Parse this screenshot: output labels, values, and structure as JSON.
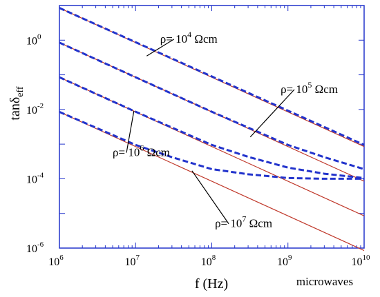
{
  "chart_data": {
    "type": "line",
    "title": "",
    "xlabel": "f (Hz)",
    "xlabel_extra": "microwaves",
    "ylabel": {
      "base": "tanδ",
      "subscript": "eff"
    },
    "x_scale": "log",
    "y_scale": "log",
    "xlim": [
      1000000,
      10000000000
    ],
    "ylim": [
      1e-06,
      10
    ],
    "x_ticks": [
      {
        "base": "10",
        "exp": "6"
      },
      {
        "base": "10",
        "exp": "7"
      },
      {
        "base": "10",
        "exp": "8"
      },
      {
        "base": "10",
        "exp": "9"
      },
      {
        "base": "10",
        "exp": "10"
      }
    ],
    "y_ticks": [
      {
        "base": "10",
        "exp": "-6",
        "value": 1e-06
      },
      {
        "base": "10",
        "exp": "-4",
        "value": 0.0001
      },
      {
        "base": "10",
        "exp": "-2",
        "value": 0.01
      },
      {
        "base": "10",
        "exp": "0",
        "value": 1
      }
    ],
    "grid": false,
    "legend": "none",
    "series": [
      {
        "style": "solid",
        "color": "#c0392b",
        "x": [
          1000000,
          10000000000
        ],
        "y": [
          8.5,
          0.00085
        ]
      },
      {
        "style": "solid",
        "color": "#c0392b",
        "x": [
          1000000,
          10000000000
        ],
        "y": [
          0.85,
          8.5e-05
        ]
      },
      {
        "style": "solid",
        "color": "#c0392b",
        "x": [
          1000000,
          10000000000
        ],
        "y": [
          0.085,
          8.5e-06
        ]
      },
      {
        "style": "solid",
        "color": "#c0392b",
        "x": [
          1000000,
          10000000000
        ],
        "y": [
          0.0085,
          8.5e-07
        ]
      },
      {
        "style": "dashed",
        "color": "#2233cc",
        "x": [
          1000000,
          10000000000
        ],
        "y": [
          8.5,
          0.00095
        ]
      },
      {
        "style": "dashed",
        "color": "#2233cc",
        "x": [
          1000000,
          10000000,
          100000000,
          1000000000,
          3000000000,
          10000000000
        ],
        "y": [
          0.85,
          0.085,
          0.0086,
          0.00095,
          0.00042,
          0.00019
        ]
      },
      {
        "style": "dashed",
        "color": "#2233cc",
        "x": [
          1000000,
          10000000,
          100000000,
          300000000,
          1000000000,
          3000000000,
          10000000000
        ],
        "y": [
          0.085,
          0.0086,
          0.00095,
          0.00043,
          0.00021,
          0.00014,
          0.000105
        ]
      },
      {
        "style": "dashed",
        "color": "#2233cc",
        "x": [
          1000000,
          3000000,
          10000000,
          30000000,
          100000000,
          300000000,
          1000000000,
          3000000000,
          10000000000
        ],
        "y": [
          0.0085,
          0.003,
          0.00095,
          0.00042,
          0.00019,
          0.000135,
          0.000105,
          0.0001,
          0.0001
        ]
      }
    ],
    "annotations": [
      {
        "label": "ρ= 10",
        "exp": "4",
        "unit": " Ωcm",
        "anchor": [
          21000000,
          0.85
        ],
        "pointer": [
          14000000,
          0.35
        ]
      },
      {
        "label": "ρ= 10",
        "exp": "5",
        "unit": " Ωcm",
        "anchor": [
          800000000,
          0.03
        ],
        "pointer": [
          320000000,
          0.0016
        ]
      },
      {
        "label": "ρ= 10",
        "exp": "6",
        "unit": " Ωcm",
        "anchor": [
          5000000,
          0.00045
        ],
        "pointer": [
          9500000,
          0.009
        ]
      },
      {
        "label": "ρ= 10",
        "exp": "7",
        "unit": " Ωcm",
        "anchor": [
          110000000,
          4e-06
        ],
        "pointer": [
          55000000,
          0.00017
        ]
      }
    ]
  }
}
